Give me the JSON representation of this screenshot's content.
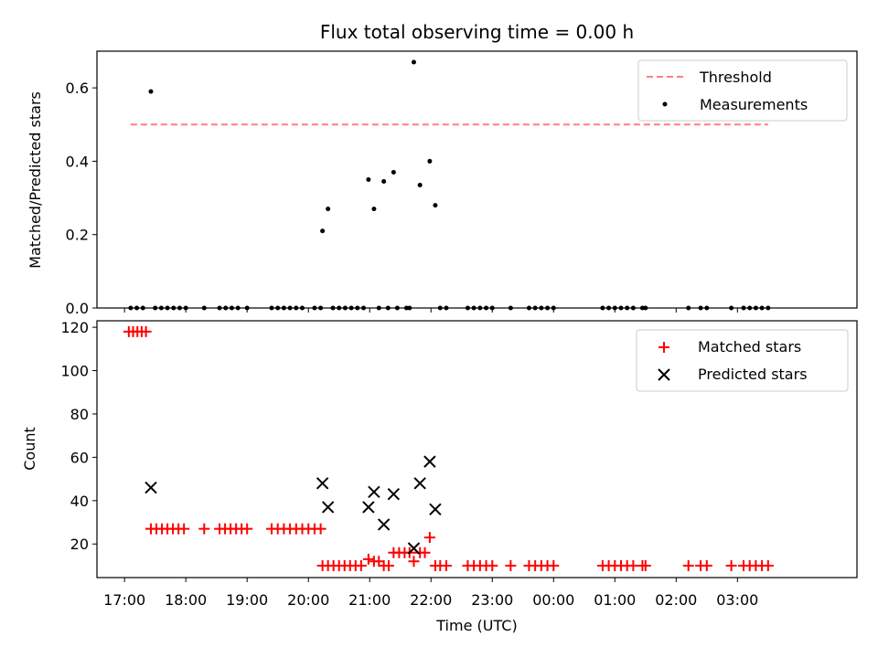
{
  "chart_data": [
    {
      "type": "scatter",
      "title": "Flux total observing time = 0.00 h",
      "ylabel": "Matched/Predicted stars",
      "xlabel": "",
      "xlim": [
        16.55,
        28.95
      ],
      "ylim": [
        0,
        0.7
      ],
      "y_ticks": [
        0.0,
        0.2,
        0.4,
        0.6
      ],
      "y_tick_labels": [
        "0.0",
        "0.2",
        "0.4",
        "0.6"
      ],
      "legend_position": "top-right",
      "threshold": {
        "name": "Threshold",
        "value": 0.5,
        "x_range": [
          17.1,
          27.5
        ],
        "color": "#ff7f7f"
      },
      "series": [
        {
          "name": "Measurements",
          "color": "#000000",
          "points": [
            [
              17.43,
              0.59
            ],
            [
              20.23,
              0.21
            ],
            [
              20.32,
              0.27
            ],
            [
              20.98,
              0.35
            ],
            [
              21.07,
              0.27
            ],
            [
              21.23,
              0.345
            ],
            [
              21.39,
              0.37
            ],
            [
              21.72,
              0.67
            ],
            [
              21.82,
              0.335
            ],
            [
              21.98,
              0.4
            ],
            [
              22.07,
              0.28
            ]
          ],
          "zero_x": [
            17.1,
            17.2,
            17.3,
            17.5,
            17.6,
            17.7,
            17.8,
            17.9,
            18.0,
            18.3,
            18.55,
            18.65,
            18.75,
            18.85,
            19.0,
            19.4,
            19.5,
            19.6,
            19.7,
            19.8,
            19.9,
            20.1,
            20.2,
            20.4,
            20.5,
            20.6,
            20.7,
            20.8,
            20.9,
            21.15,
            21.3,
            21.45,
            21.6,
            21.65,
            22.15,
            22.25,
            22.6,
            22.7,
            22.8,
            22.9,
            23.0,
            23.3,
            23.6,
            23.7,
            23.8,
            23.9,
            24.0,
            24.8,
            24.9,
            25.0,
            25.1,
            25.2,
            25.3,
            25.45,
            25.5,
            26.2,
            26.4,
            26.5,
            26.9,
            27.1,
            27.2,
            27.3,
            27.4,
            27.5
          ]
        }
      ]
    },
    {
      "type": "scatter",
      "title": "",
      "ylabel": "Count",
      "xlabel": "Time (UTC)",
      "xlim": [
        16.55,
        28.95
      ],
      "ylim": [
        4.5,
        123
      ],
      "y_ticks": [
        20,
        40,
        60,
        80,
        100,
        120
      ],
      "y_tick_labels": [
        "20",
        "40",
        "60",
        "80",
        "100",
        "120"
      ],
      "x_ticks": [
        17,
        18,
        19,
        20,
        21,
        22,
        23,
        24,
        25,
        26,
        27
      ],
      "x_tick_labels": [
        "17:00",
        "18:00",
        "19:00",
        "20:00",
        "21:00",
        "22:00",
        "23:00",
        "00:00",
        "01:00",
        "02:00",
        "03:00"
      ],
      "legend_position": "top-right",
      "series": [
        {
          "name": "Matched stars",
          "marker": "plus",
          "color": "#ff0000",
          "points": [
            [
              17.07,
              118
            ],
            [
              17.14,
              118
            ],
            [
              17.21,
              118
            ],
            [
              17.28,
              118
            ],
            [
              17.35,
              118
            ],
            [
              17.43,
              27
            ],
            [
              17.52,
              27
            ],
            [
              17.61,
              27
            ],
            [
              17.7,
              27
            ],
            [
              17.79,
              27
            ],
            [
              17.88,
              27
            ],
            [
              17.97,
              27
            ],
            [
              18.3,
              27
            ],
            [
              18.55,
              27
            ],
            [
              18.64,
              27
            ],
            [
              18.73,
              27
            ],
            [
              18.82,
              27
            ],
            [
              18.91,
              27
            ],
            [
              19.0,
              27
            ],
            [
              19.4,
              27
            ],
            [
              19.5,
              27
            ],
            [
              19.6,
              27
            ],
            [
              19.7,
              27
            ],
            [
              19.8,
              27
            ],
            [
              19.9,
              27
            ],
            [
              20.0,
              27
            ],
            [
              20.1,
              27
            ],
            [
              20.2,
              27
            ],
            [
              20.23,
              10
            ],
            [
              20.32,
              10
            ],
            [
              20.41,
              10
            ],
            [
              20.5,
              10
            ],
            [
              20.59,
              10
            ],
            [
              20.68,
              10
            ],
            [
              20.77,
              10
            ],
            [
              20.86,
              10
            ],
            [
              20.98,
              13
            ],
            [
              21.07,
              12
            ],
            [
              21.15,
              12
            ],
            [
              21.23,
              10
            ],
            [
              21.31,
              10
            ],
            [
              21.39,
              16
            ],
            [
              21.48,
              16
            ],
            [
              21.57,
              16
            ],
            [
              21.65,
              16
            ],
            [
              21.72,
              12
            ],
            [
              21.82,
              16
            ],
            [
              21.9,
              16
            ],
            [
              21.98,
              23
            ],
            [
              22.07,
              10
            ],
            [
              22.15,
              10
            ],
            [
              22.25,
              10
            ],
            [
              22.6,
              10
            ],
            [
              22.7,
              10
            ],
            [
              22.8,
              10
            ],
            [
              22.9,
              10
            ],
            [
              23.0,
              10
            ],
            [
              23.3,
              10
            ],
            [
              23.6,
              10
            ],
            [
              23.7,
              10
            ],
            [
              23.8,
              10
            ],
            [
              23.9,
              10
            ],
            [
              24.0,
              10
            ],
            [
              24.8,
              10
            ],
            [
              24.9,
              10
            ],
            [
              25.0,
              10
            ],
            [
              25.1,
              10
            ],
            [
              25.2,
              10
            ],
            [
              25.3,
              10
            ],
            [
              25.45,
              10
            ],
            [
              25.5,
              10
            ],
            [
              26.2,
              10
            ],
            [
              26.4,
              10
            ],
            [
              26.5,
              10
            ],
            [
              26.9,
              10
            ],
            [
              27.1,
              10
            ],
            [
              27.2,
              10
            ],
            [
              27.3,
              10
            ],
            [
              27.4,
              10
            ],
            [
              27.5,
              10
            ]
          ]
        },
        {
          "name": "Predicted stars",
          "marker": "x",
          "color": "#000000",
          "points": [
            [
              17.43,
              46
            ],
            [
              20.23,
              48
            ],
            [
              20.32,
              37
            ],
            [
              20.98,
              37
            ],
            [
              21.07,
              44
            ],
            [
              21.23,
              29
            ],
            [
              21.39,
              43
            ],
            [
              21.72,
              18
            ],
            [
              21.82,
              48
            ],
            [
              21.98,
              58
            ],
            [
              22.07,
              36
            ]
          ]
        }
      ]
    }
  ]
}
